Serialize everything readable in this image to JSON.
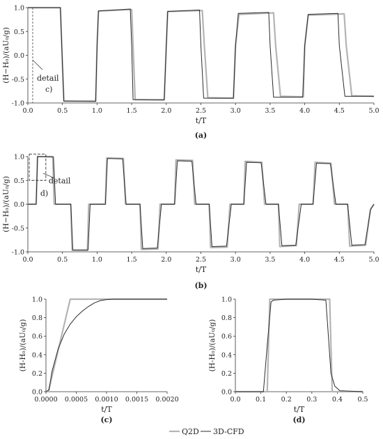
{
  "legend": {
    "entries": [
      {
        "name": "Q2D",
        "color": "#b4b4b4"
      },
      {
        "name": "3D-CFD",
        "color": "#2b2b2b"
      }
    ]
  },
  "chart_data": [
    {
      "id": "a",
      "panel_label": "(a)",
      "type": "line",
      "xlabel": "t/T",
      "ylabel": "(H−H₀)/(aU₀/g)",
      "xlim": [
        0,
        5
      ],
      "ylim": [
        -1,
        1
      ],
      "xticks": [
        "0.0",
        "0.5",
        "1.0",
        "1.5",
        "2.0",
        "2.5",
        "3.0",
        "3.5",
        "4.0",
        "4.5",
        "5.0"
      ],
      "yticks": [
        "-1.0",
        "-0.5",
        "0.0",
        "0.5",
        "1.0"
      ],
      "annotation": {
        "lines": [
          "detail",
          "c)"
        ],
        "marker_x": 0.07
      },
      "series": [
        {
          "name": "Q2D",
          "x": [
            0,
            0.47,
            0.5,
            0.52,
            0.98,
            1.0,
            1.02,
            1.5,
            1.52,
            1.55,
            1.97,
            2.0,
            2.02,
            2.52,
            2.55,
            2.6,
            2.97,
            3.0,
            3.05,
            3.55,
            3.58,
            3.65,
            3.98,
            4.0,
            4.05,
            4.57,
            4.6,
            4.68,
            5.0
          ],
          "y": [
            1.0,
            1.0,
            -0.2,
            -0.96,
            -0.97,
            0.2,
            0.93,
            0.96,
            0.2,
            -0.93,
            -0.94,
            0.2,
            0.92,
            0.94,
            0.2,
            -0.89,
            -0.9,
            0.2,
            0.86,
            0.89,
            0.2,
            -0.86,
            -0.87,
            0.2,
            0.84,
            0.87,
            0.2,
            -0.85,
            -0.86
          ]
        },
        {
          "name": "3D-CFD",
          "x": [
            0,
            0.47,
            0.5,
            0.52,
            0.98,
            1.0,
            1.02,
            1.48,
            1.5,
            1.52,
            1.97,
            2.0,
            2.02,
            2.48,
            2.5,
            2.54,
            2.97,
            3.0,
            3.04,
            3.48,
            3.5,
            3.55,
            3.97,
            4.0,
            4.05,
            4.48,
            4.5,
            4.58,
            5.0
          ],
          "y": [
            1.0,
            1.0,
            -0.2,
            -0.96,
            -0.96,
            0.2,
            0.93,
            0.97,
            0.2,
            -0.93,
            -0.93,
            0.2,
            0.92,
            0.95,
            0.2,
            -0.9,
            -0.9,
            0.2,
            0.88,
            0.9,
            0.2,
            -0.88,
            -0.88,
            0.2,
            0.86,
            0.88,
            0.2,
            -0.86,
            -0.86
          ]
        }
      ]
    },
    {
      "id": "b",
      "panel_label": "(b)",
      "type": "line",
      "xlabel": "t/T",
      "ylabel": "(H−H₀)/(aU₀/g)",
      "xlim": [
        0,
        5
      ],
      "ylim": [
        -1,
        1
      ],
      "xticks": [
        "0.0",
        "0.5",
        "1.0",
        "1.5",
        "2.0",
        "2.5",
        "3.0",
        "3.5",
        "4.0",
        "4.5",
        "5.0"
      ],
      "yticks": [
        "-1.0",
        "-0.5",
        "0.0",
        "0.5",
        "1.0"
      ],
      "annotation": {
        "lines": [
          "detail",
          "d)"
        ],
        "box_x": [
          0.02,
          0.26
        ],
        "box_y": [
          0.5,
          1.05
        ]
      },
      "series": [
        {
          "name": "Q2D",
          "x": [
            0,
            0.12,
            0.14,
            0.36,
            0.38,
            0.62,
            0.64,
            0.86,
            0.88,
            1.12,
            1.14,
            1.38,
            1.41,
            1.62,
            1.64,
            1.88,
            1.91,
            2.12,
            2.14,
            2.38,
            2.41,
            2.62,
            2.64,
            2.88,
            2.92,
            3.12,
            3.14,
            3.38,
            3.42,
            3.62,
            3.64,
            3.88,
            3.92,
            4.12,
            4.15,
            4.38,
            4.43,
            4.62,
            4.65,
            4.88,
            4.95,
            5.0
          ],
          "y": [
            0,
            0,
            1.0,
            1.0,
            0,
            0,
            -0.97,
            -0.97,
            0,
            0,
            0.97,
            0.96,
            0,
            0,
            -0.95,
            -0.94,
            0,
            0,
            0.93,
            0.92,
            0,
            0,
            -0.91,
            -0.9,
            0,
            0,
            0.9,
            0.88,
            0,
            0,
            -0.89,
            -0.87,
            0,
            0,
            0.88,
            0.86,
            0,
            0,
            -0.88,
            -0.86,
            -0.1,
            0
          ]
        },
        {
          "name": "3D-CFD",
          "x": [
            0,
            0.12,
            0.14,
            0.37,
            0.4,
            0.62,
            0.65,
            0.87,
            0.9,
            1.12,
            1.15,
            1.37,
            1.42,
            1.62,
            1.66,
            1.87,
            1.93,
            2.12,
            2.16,
            2.37,
            2.43,
            2.62,
            2.66,
            2.87,
            2.94,
            3.12,
            3.16,
            3.37,
            3.44,
            3.62,
            3.67,
            3.87,
            3.95,
            4.12,
            4.17,
            4.37,
            4.45,
            4.62,
            4.68,
            4.87,
            4.95,
            5.0
          ],
          "y": [
            0,
            0,
            1.0,
            0.99,
            0,
            0,
            -0.96,
            -0.96,
            0,
            0,
            0.96,
            0.95,
            0,
            0,
            -0.93,
            -0.92,
            0,
            0,
            0.91,
            0.9,
            0,
            0,
            -0.89,
            -0.88,
            0,
            0,
            0.88,
            0.87,
            0,
            0,
            -0.87,
            -0.86,
            0,
            0,
            0.86,
            0.85,
            0,
            0,
            -0.86,
            -0.85,
            -0.12,
            0
          ]
        }
      ]
    },
    {
      "id": "c",
      "panel_label": "(c)",
      "type": "line",
      "xlabel": "t/T",
      "ylabel": "(H-H₀)/(aU₀/g)",
      "xlim": [
        0,
        0.002
      ],
      "ylim": [
        0,
        1
      ],
      "xticks": [
        "0.0000",
        "0.0005",
        "0.0010",
        "0.0015",
        "0.0020"
      ],
      "yticks": [
        "0.0",
        "0.2",
        "0.4",
        "0.6",
        "0.8",
        "1.0"
      ],
      "series": [
        {
          "name": "Q2D",
          "x": [
            0,
            4e-05,
            0.0004,
            0.002
          ],
          "y": [
            0,
            0,
            1.0,
            1.0
          ]
        },
        {
          "name": "3D-CFD",
          "x": [
            0,
            5e-05,
            0.0001,
            0.0002,
            0.0003,
            0.0004,
            0.0005,
            0.0006,
            0.0007,
            0.0008,
            0.0009,
            0.001,
            0.0011,
            0.0013,
            0.002
          ],
          "y": [
            0,
            0.02,
            0.22,
            0.46,
            0.62,
            0.73,
            0.81,
            0.87,
            0.92,
            0.96,
            0.985,
            0.995,
            1.0,
            1.0,
            1.0
          ]
        }
      ]
    },
    {
      "id": "d",
      "panel_label": "(d)",
      "type": "line",
      "xlabel": "t/T",
      "ylabel": "(H-H₀)/(aU₀/g)",
      "xlim": [
        0,
        0.5
      ],
      "ylim": [
        0,
        1
      ],
      "xticks": [
        "0.0",
        "0.1",
        "0.2",
        "0.3",
        "0.4",
        "0.5"
      ],
      "yticks": [
        "0.0",
        "0.2",
        "0.4",
        "0.6",
        "0.8",
        "1.0"
      ],
      "series": [
        {
          "name": "Q2D",
          "x": [
            0,
            0.125,
            0.135,
            0.37,
            0.38,
            0.5
          ],
          "y": [
            0,
            0,
            1.0,
            1.0,
            0,
            0
          ]
        },
        {
          "name": "3D-CFD",
          "x": [
            0,
            0.11,
            0.125,
            0.14,
            0.15,
            0.2,
            0.3,
            0.355,
            0.365,
            0.375,
            0.39,
            0.41,
            0.5
          ],
          "y": [
            0,
            0,
            0.5,
            0.97,
            0.99,
            1.0,
            1.0,
            0.99,
            0.6,
            0.2,
            0.06,
            0.01,
            0
          ]
        }
      ]
    }
  ]
}
